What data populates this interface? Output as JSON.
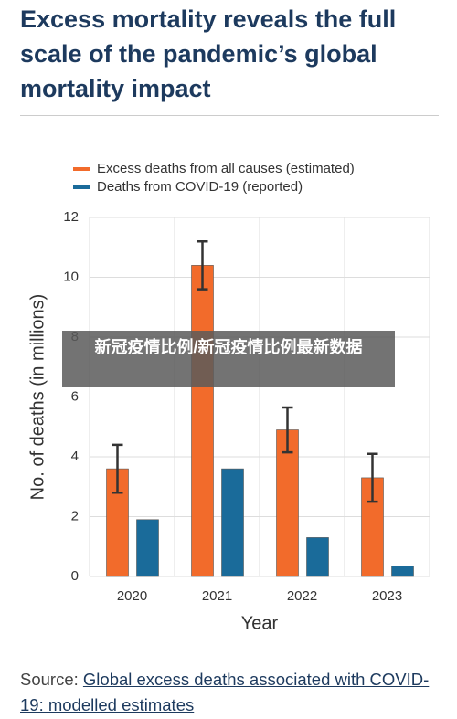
{
  "chart_data": {
    "type": "bar",
    "title": "Excess mortality reveals the full scale of the pandemic’s global mortality impact",
    "x_label": "Year",
    "y_label": "No. of deaths (in millions)",
    "categories": [
      "2020",
      "2021",
      "2022",
      "2023"
    ],
    "series": [
      {
        "name": "Excess deaths from all causes (estimated)",
        "color": "#f26b2b",
        "values": [
          3.6,
          10.4,
          4.9,
          3.3
        ],
        "errors": [
          0.8,
          0.8,
          0.75,
          0.8
        ]
      },
      {
        "name": "Deaths from COVID-19 (reported)",
        "color": "#1a6b9a",
        "values": [
          1.9,
          3.6,
          1.3,
          0.35
        ]
      }
    ],
    "ylim": [
      0,
      12
    ],
    "yticks": [
      0,
      2,
      4,
      6,
      8,
      10,
      12
    ],
    "grid": true,
    "source_prefix": "Source:",
    "source_link": "Global excess deaths associated with COVID-19: modelled estimates"
  },
  "overlay": {
    "text": "新冠疫情比例/新冠疫情比例最新数据"
  }
}
